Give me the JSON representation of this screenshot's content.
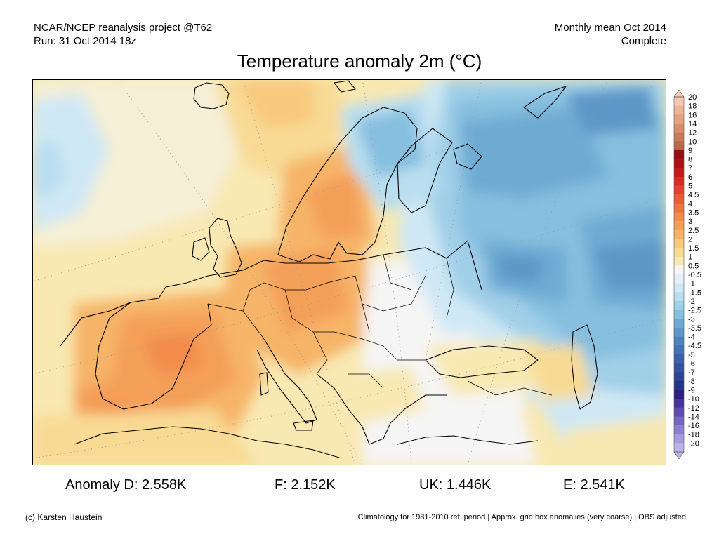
{
  "header": {
    "left_line1": "NCAR/NCEP reanalysis project @T62",
    "left_line2": "Run: 31 Oct 2014 18z",
    "right_line1": "Monthly mean Oct 2014",
    "right_line2": "Complete"
  },
  "title": "Temperature anomaly 2m (°C)",
  "colorbar": {
    "labels": [
      "20",
      "18",
      "16",
      "14",
      "12",
      "10",
      "9",
      "8",
      "7",
      "6",
      "5",
      "4.5",
      "4",
      "3.5",
      "3",
      "2.5",
      "2",
      "1.5",
      "1",
      "0.5",
      "-0.5",
      "-1",
      "-1.5",
      "-2",
      "-2.5",
      "-3",
      "-3.5",
      "-4",
      "-4.5",
      "-5",
      "-6",
      "-7",
      "-8",
      "-9",
      "-10",
      "-12",
      "-14",
      "-16",
      "-18",
      "-20"
    ],
    "colors": [
      "#f6c8b0",
      "#eeb595",
      "#e4a37e",
      "#d68f6a",
      "#c87b58",
      "#b86a4a",
      "#9a0e14",
      "#b10f14",
      "#c81818",
      "#dc2a22",
      "#e84030",
      "#ee5a3a",
      "#f07443",
      "#f38b4c",
      "#f49f58",
      "#f6b468",
      "#f7c97c",
      "#f8da94",
      "#f8e8b2",
      "#f5f5f5",
      "#e4f1fa",
      "#cfe8f5",
      "#b9def0",
      "#a0cfe8",
      "#86bfdf",
      "#6eabd3",
      "#5b97c8",
      "#4e85bd",
      "#4474b2",
      "#3b62a6",
      "#35539b",
      "#2d4590",
      "#253486",
      "#2c1f80",
      "#47359a",
      "#5f4cad",
      "#7766bf",
      "#8e80d0",
      "#a59add",
      "#bcb4e8"
    ]
  },
  "stats": [
    {
      "label": "Anomaly D:",
      "value": "2.558K"
    },
    {
      "label": "F:",
      "value": "2.152K"
    },
    {
      "label": "UK:",
      "value": "1.446K"
    },
    {
      "label": "E:",
      "value": "2.541K"
    }
  ],
  "footer": {
    "left": "(c) Karsten Haustein",
    "right": "Climatology for 1981-2010 ref. period | Approx. grid box anomalies (very coarse) | OBS adjusted"
  }
}
